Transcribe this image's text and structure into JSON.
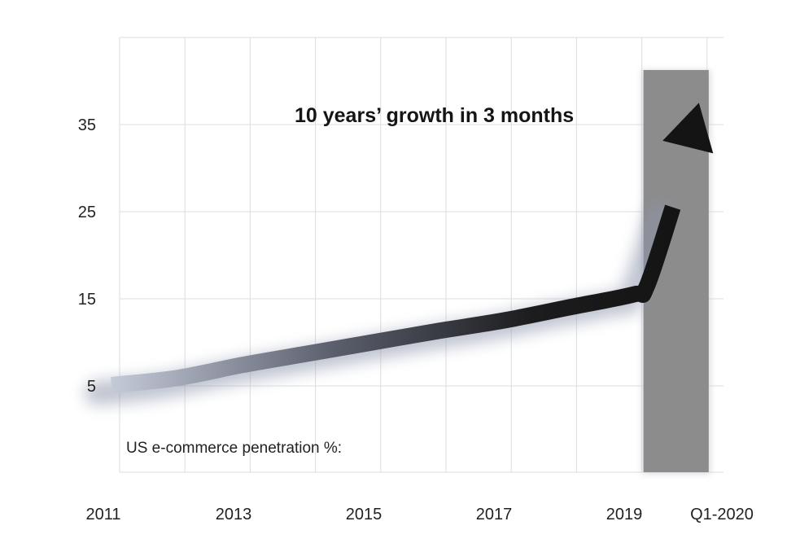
{
  "chart_data": {
    "type": "line",
    "annotation": "10 years’ growth in 3 months",
    "note": "US e-commerce penetration %:",
    "x_tick_labels": [
      "2011",
      "2013",
      "2015",
      "2017",
      "2019",
      "Q1-2020"
    ],
    "y_tick_labels": [
      "5",
      "15",
      "25",
      "35"
    ],
    "y_ticks": [
      5,
      15,
      25,
      35
    ],
    "ylim": [
      -5,
      45
    ],
    "xlim": [
      2011,
      2020.25
    ],
    "grid": true,
    "highlight_band": {
      "from": 2019.15,
      "to": 2020.15,
      "color": "#8c8c8c"
    },
    "series": [
      {
        "x": [
          2011,
          2012,
          2013,
          2014,
          2015,
          2016,
          2017,
          2018,
          2019,
          2019.2,
          2019.6,
          2020.0
        ],
        "values": [
          5.1,
          5.9,
          7.4,
          8.7,
          10.0,
          11.3,
          12.5,
          14.0,
          15.5,
          16.4,
          25.5,
          37.5
        ]
      }
    ],
    "colors": {
      "arrow_start": "#c4cad8",
      "arrow_mid": "#5a5e6c",
      "arrow_end": "#141414",
      "grid": "#dddddd"
    }
  }
}
